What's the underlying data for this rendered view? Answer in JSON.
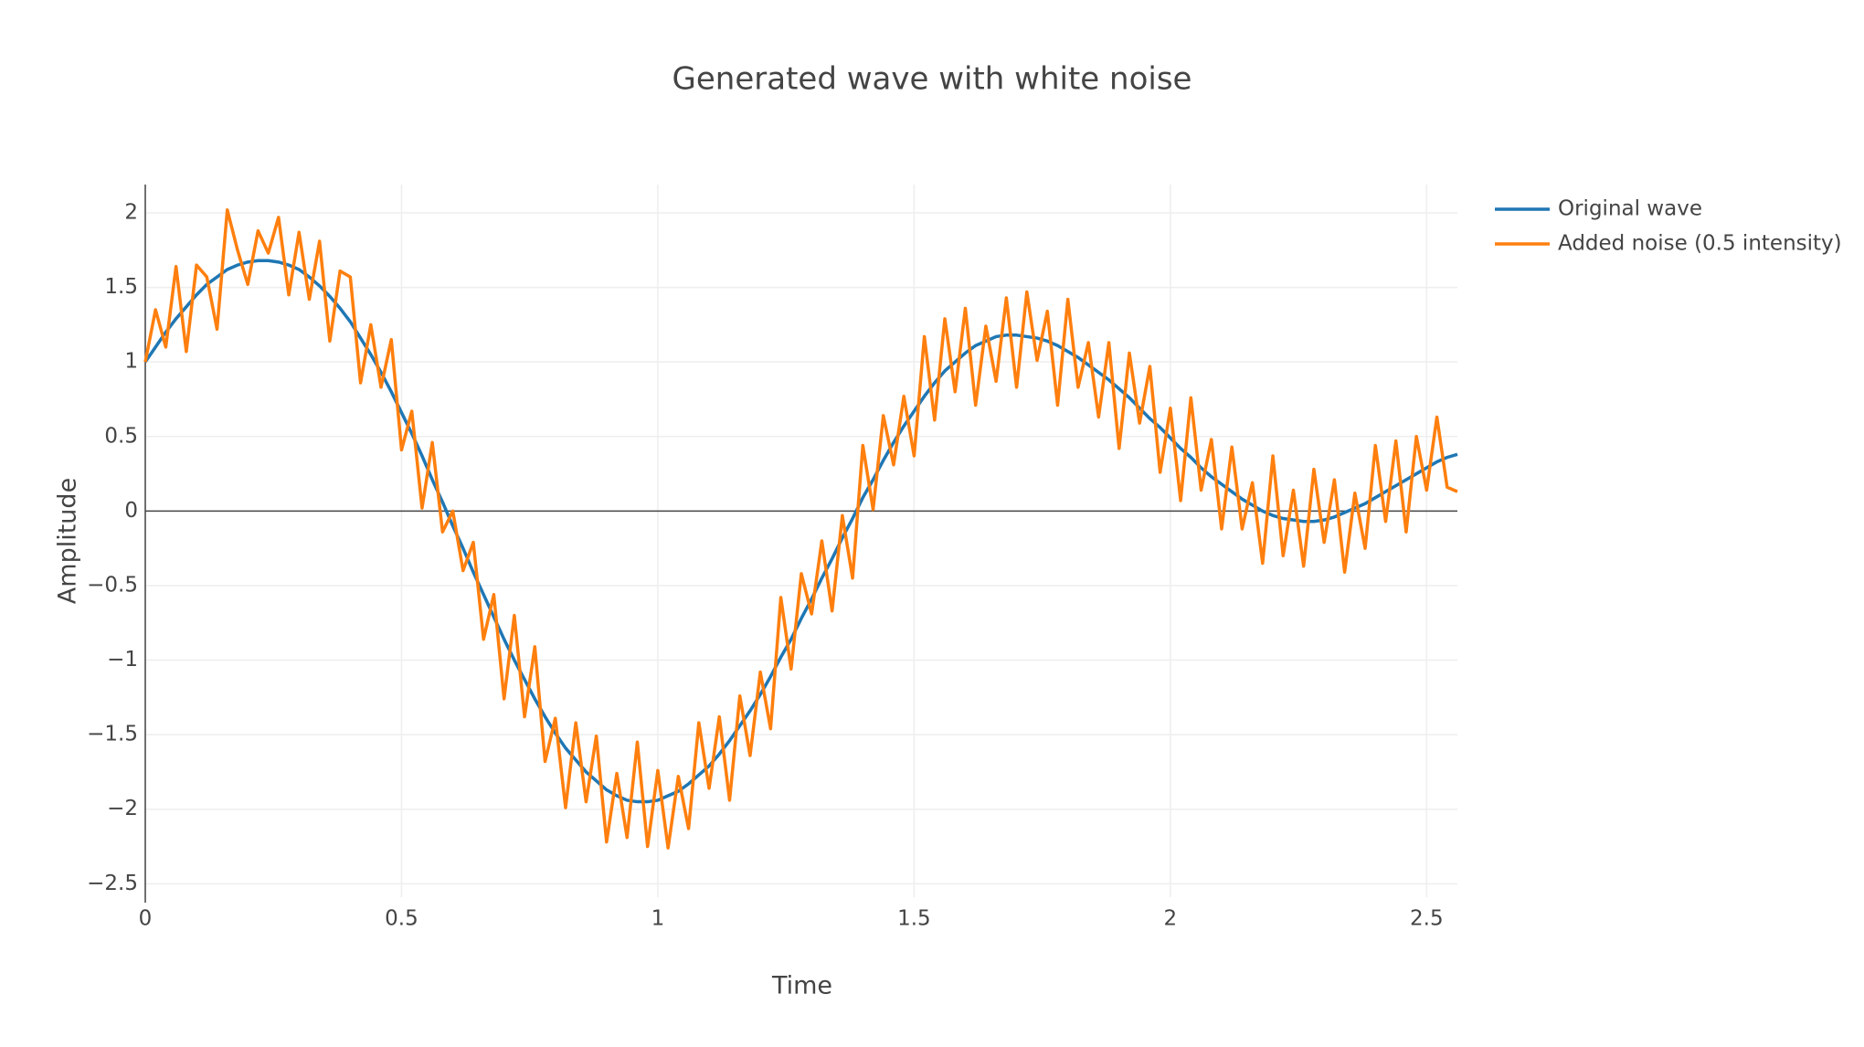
{
  "chart_data": {
    "type": "line",
    "title": "Generated wave with white noise",
    "x_label": "Time",
    "y_label": "Amplitude",
    "x": [
      0,
      0.02,
      0.04,
      0.06,
      0.08,
      0.1,
      0.12,
      0.14,
      0.16,
      0.18,
      0.2,
      0.22,
      0.24,
      0.26,
      0.28,
      0.3,
      0.32,
      0.34,
      0.36,
      0.38,
      0.4,
      0.42,
      0.44,
      0.46,
      0.48,
      0.5,
      0.52,
      0.54,
      0.56,
      0.58,
      0.6,
      0.62,
      0.64,
      0.66,
      0.68,
      0.7,
      0.72,
      0.74,
      0.76,
      0.78,
      0.8,
      0.82,
      0.84,
      0.86,
      0.88,
      0.9,
      0.92,
      0.94,
      0.96,
      0.98,
      1,
      1.02,
      1.04,
      1.06,
      1.08,
      1.1,
      1.12,
      1.14,
      1.16,
      1.18,
      1.2,
      1.22,
      1.24,
      1.26,
      1.28,
      1.3,
      1.32,
      1.34,
      1.36,
      1.38,
      1.4,
      1.42,
      1.44,
      1.46,
      1.48,
      1.5,
      1.52,
      1.54,
      1.56,
      1.58,
      1.6,
      1.62,
      1.64,
      1.66,
      1.68,
      1.7,
      1.72,
      1.74,
      1.76,
      1.78,
      1.8,
      1.82,
      1.84,
      1.86,
      1.88,
      1.9,
      1.92,
      1.94,
      1.96,
      1.98,
      2,
      2.02,
      2.04,
      2.06,
      2.08,
      2.1,
      2.12,
      2.14,
      2.16,
      2.18,
      2.2,
      2.22,
      2.24,
      2.26,
      2.28,
      2.3,
      2.32,
      2.34,
      2.36,
      2.38,
      2.4,
      2.42,
      2.44,
      2.46,
      2.48,
      2.5,
      2.52,
      2.54,
      2.56
    ],
    "series": [
      {
        "name": "Original wave",
        "color": "#1f77b4",
        "values": [
          1.0,
          1.1,
          1.2,
          1.29,
          1.37,
          1.45,
          1.52,
          1.57,
          1.62,
          1.65,
          1.67,
          1.68,
          1.68,
          1.67,
          1.65,
          1.62,
          1.57,
          1.51,
          1.44,
          1.36,
          1.27,
          1.16,
          1.05,
          0.93,
          0.8,
          0.66,
          0.52,
          0.37,
          0.21,
          0.06,
          -0.1,
          -0.25,
          -0.41,
          -0.56,
          -0.71,
          -0.86,
          -1.0,
          -1.13,
          -1.26,
          -1.38,
          -1.49,
          -1.59,
          -1.67,
          -1.75,
          -1.81,
          -1.87,
          -1.91,
          -1.94,
          -1.95,
          -1.95,
          -1.94,
          -1.91,
          -1.88,
          -1.83,
          -1.77,
          -1.71,
          -1.63,
          -1.54,
          -1.44,
          -1.34,
          -1.23,
          -1.11,
          -0.98,
          -0.86,
          -0.72,
          -0.59,
          -0.45,
          -0.32,
          -0.18,
          -0.05,
          0.09,
          0.21,
          0.34,
          0.46,
          0.57,
          0.67,
          0.77,
          0.86,
          0.94,
          1.0,
          1.06,
          1.11,
          1.14,
          1.17,
          1.18,
          1.18,
          1.17,
          1.16,
          1.14,
          1.11,
          1.07,
          1.03,
          0.98,
          0.93,
          0.88,
          0.82,
          0.76,
          0.69,
          0.62,
          0.56,
          0.49,
          0.42,
          0.36,
          0.29,
          0.23,
          0.18,
          0.13,
          0.08,
          0.04,
          0.0,
          -0.03,
          -0.05,
          -0.06,
          -0.07,
          -0.07,
          -0.06,
          -0.04,
          -0.01,
          0.02,
          0.05,
          0.09,
          0.13,
          0.17,
          0.21,
          0.25,
          0.29,
          0.33,
          0.36,
          0.38
        ]
      },
      {
        "name": "Added noise (0.5 intensity)",
        "color": "#ff7f0e",
        "values": [
          1.0,
          1.35,
          1.1,
          1.64,
          1.07,
          1.65,
          1.57,
          1.22,
          2.02,
          1.75,
          1.52,
          1.88,
          1.73,
          1.97,
          1.45,
          1.87,
          1.42,
          1.81,
          1.14,
          1.61,
          1.57,
          0.86,
          1.25,
          0.83,
          1.15,
          0.41,
          0.67,
          0.02,
          0.46,
          -0.14,
          0.0,
          -0.4,
          -0.21,
          -0.86,
          -0.56,
          -1.26,
          -0.7,
          -1.38,
          -0.91,
          -1.68,
          -1.39,
          -1.99,
          -1.42,
          -1.95,
          -1.51,
          -2.22,
          -1.76,
          -2.19,
          -1.55,
          -2.25,
          -1.74,
          -2.26,
          -1.78,
          -2.13,
          -1.42,
          -1.86,
          -1.38,
          -1.94,
          -1.24,
          -1.64,
          -1.08,
          -1.46,
          -0.58,
          -1.06,
          -0.42,
          -0.69,
          -0.2,
          -0.67,
          -0.03,
          -0.45,
          0.44,
          0.01,
          0.64,
          0.31,
          0.77,
          0.37,
          1.17,
          0.61,
          1.29,
          0.8,
          1.36,
          0.71,
          1.24,
          0.87,
          1.43,
          0.83,
          1.47,
          1.01,
          1.34,
          0.71,
          1.42,
          0.83,
          1.13,
          0.63,
          1.13,
          0.42,
          1.06,
          0.59,
          0.97,
          0.26,
          0.69,
          0.07,
          0.76,
          0.14,
          0.48,
          -0.12,
          0.43,
          -0.12,
          0.19,
          -0.35,
          0.37,
          -0.3,
          0.14,
          -0.37,
          0.28,
          -0.21,
          0.21,
          -0.41,
          0.12,
          -0.25,
          0.44,
          -0.07,
          0.47,
          -0.14,
          0.5,
          0.14,
          0.63,
          0.16,
          0.13
        ]
      }
    ],
    "xlim": [
      0,
      2.56
    ],
    "ylim": [
      -2.59,
      2.19
    ],
    "xticks": [
      0,
      0.5,
      1,
      1.5,
      2,
      2.5
    ],
    "yticks": [
      {
        "value": -2.5,
        "label": "−2.5"
      },
      {
        "value": -2,
        "label": "−2"
      },
      {
        "value": -1.5,
        "label": "−1.5"
      },
      {
        "value": -1,
        "label": "−1"
      },
      {
        "value": -0.5,
        "label": "−0.5"
      },
      0,
      0.5,
      1,
      1.5,
      2
    ],
    "grid": true,
    "zeroline": true,
    "legend": "right"
  }
}
